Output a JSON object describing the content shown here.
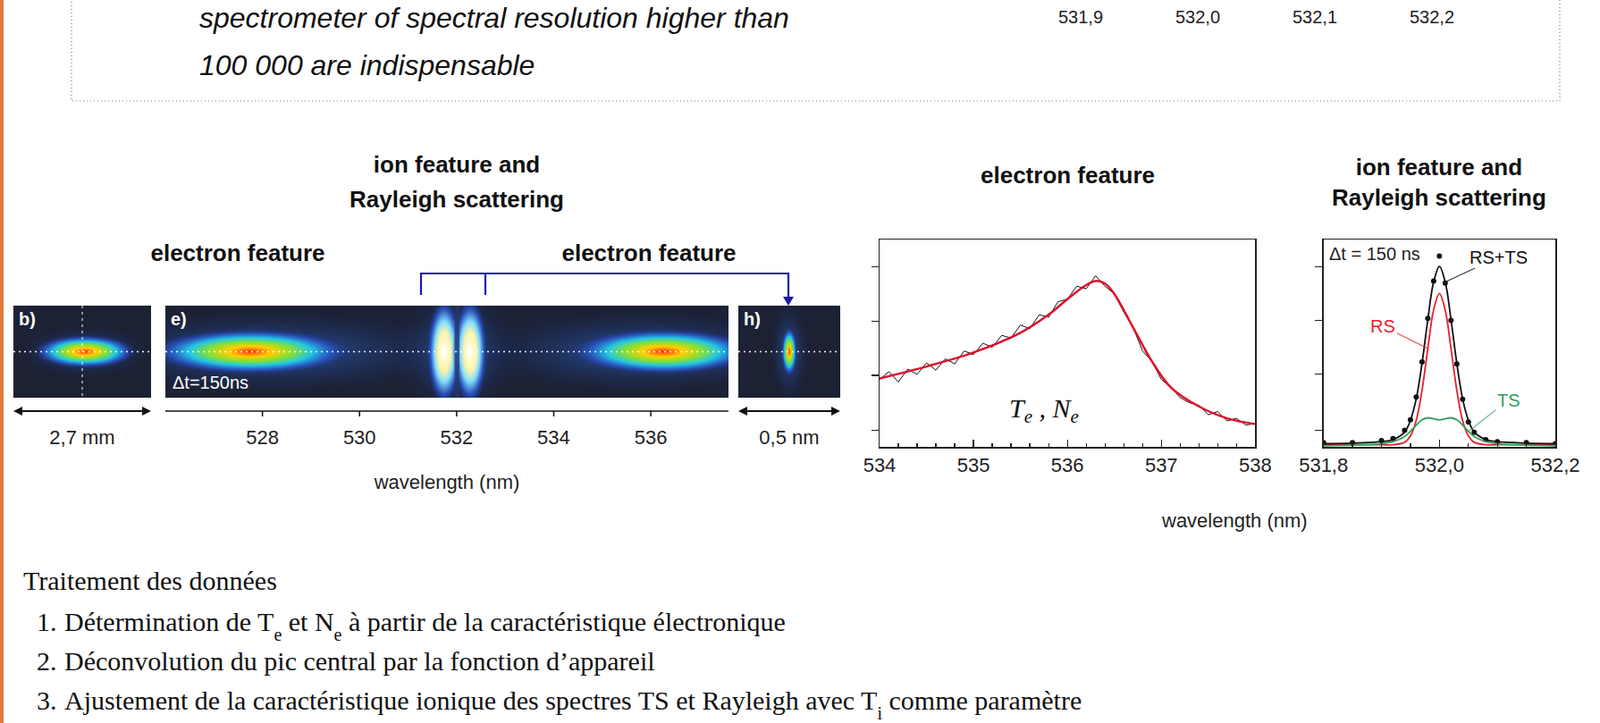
{
  "header_box": {
    "lines": [
      "spectrometer of spectral resolution higher than",
      "100 000 are indispensable"
    ],
    "axis_labels": [
      "531,9",
      "532,0",
      "532,1",
      "532,2"
    ]
  },
  "spectral_images": {
    "group_labels": {
      "left": "electron feature",
      "center": "ion feature and Rayleigh scattering",
      "right": "electron feature"
    },
    "panels": [
      {
        "label": "b)",
        "scale_label": "2,7 mm"
      },
      {
        "label": "e)",
        "note": "Δt=150ns",
        "xlim": [
          526,
          537.6
        ],
        "xticks": [
          528,
          530,
          532,
          534,
          536
        ],
        "xlabel": "wavelength (nm)"
      },
      {
        "label": "h)",
        "scale_label": "0,5 nm"
      }
    ]
  },
  "chart_data": [
    {
      "type": "line",
      "title": "electron feature",
      "xlim": [
        534,
        538
      ],
      "xticks": [
        534,
        535,
        536,
        537,
        538
      ],
      "ylim": [
        0,
        4
      ],
      "yticks": [
        0.32,
        1.38,
        2.42,
        3.47
      ],
      "tick_labels": "x",
      "grid": false,
      "annotation": [
        "T",
        {
          "sub": "e"
        },
        " , N",
        {
          "sub": "e"
        }
      ],
      "series": [
        {
          "color": "#111111",
          "line_style": "solid",
          "x": [
            534.0,
            534.1,
            534.2,
            534.3,
            534.4,
            534.5,
            534.6,
            534.7,
            534.8,
            534.9,
            535.0,
            535.1,
            535.2,
            535.3,
            535.4,
            535.5,
            535.6,
            535.7,
            535.8,
            535.9,
            536.0,
            536.1,
            536.2,
            536.3,
            536.4,
            536.5,
            536.6,
            536.7,
            536.8,
            536.9,
            537.0,
            537.1,
            537.2,
            537.3,
            537.4,
            537.5,
            537.6,
            537.7,
            537.8,
            537.9,
            538.0
          ],
          "values": [
            1.3,
            1.45,
            1.25,
            1.5,
            1.4,
            1.62,
            1.48,
            1.7,
            1.6,
            1.85,
            1.78,
            2.0,
            1.92,
            2.15,
            2.1,
            2.35,
            2.28,
            2.55,
            2.5,
            2.8,
            2.85,
            3.1,
            3.05,
            3.3,
            3.1,
            2.95,
            2.6,
            2.3,
            1.85,
            1.65,
            1.3,
            1.15,
            0.95,
            0.85,
            0.8,
            0.62,
            0.68,
            0.5,
            0.55,
            0.42,
            0.45
          ]
        },
        {
          "color": "#e0102a",
          "line_style": "solid",
          "x": [
            534,
            534.5,
            535,
            535.5,
            535.8,
            536,
            536.2,
            536.3,
            536.4,
            536.5,
            536.7,
            536.9,
            537.1,
            537.4,
            537.7,
            538
          ],
          "values": [
            1.32,
            1.55,
            1.82,
            2.2,
            2.55,
            2.85,
            3.12,
            3.2,
            3.15,
            2.95,
            2.3,
            1.65,
            1.15,
            0.78,
            0.55,
            0.44
          ]
        }
      ]
    },
    {
      "type": "line",
      "title": "ion feature and Rayleigh scattering",
      "xlim": [
        531.8,
        532.2
      ],
      "xticks": [
        {
          "value": 531.8,
          "label": "531,8"
        },
        {
          "value": 532.0,
          "label": "532,0"
        },
        {
          "value": 532.2,
          "label": "532,2"
        }
      ],
      "ylim": [
        0,
        1
      ],
      "yticks": [
        0.08,
        0.35,
        0.61,
        0.87
      ],
      "tick_labels": "x",
      "grid": false,
      "annotation": "Δt = 150 ns",
      "x": [
        531.8,
        531.85,
        531.9,
        531.92,
        531.94,
        531.95,
        531.96,
        531.97,
        531.98,
        531.99,
        532.0,
        532.01,
        532.02,
        532.03,
        532.04,
        532.05,
        532.06,
        532.08,
        532.1,
        532.15,
        532.2
      ],
      "series": [
        {
          "type": "scatter",
          "marker": "circle",
          "color": "#111111",
          "values": [
            0.02,
            0.02,
            0.03,
            0.04,
            0.08,
            0.13,
            0.24,
            0.41,
            0.62,
            0.8,
            0.92,
            0.79,
            0.61,
            0.4,
            0.23,
            0.12,
            0.07,
            0.035,
            0.025,
            0.02,
            0.015
          ]
        },
        {
          "name": "RS",
          "color": "#e8202a",
          "line_style": "solid",
          "values": [
            0.01,
            0.01,
            0.01,
            0.01,
            0.022,
            0.053,
            0.127,
            0.273,
            0.474,
            0.66,
            0.74,
            0.66,
            0.474,
            0.273,
            0.127,
            0.053,
            0.022,
            0.01,
            0.01,
            0.01,
            0.01
          ]
        },
        {
          "name": "TS",
          "color": "#2e9e5b",
          "line_style": "solid",
          "values": [
            0.005,
            0.008,
            0.015,
            0.025,
            0.05,
            0.075,
            0.105,
            0.13,
            0.14,
            0.135,
            0.13,
            0.135,
            0.14,
            0.13,
            0.105,
            0.075,
            0.05,
            0.025,
            0.015,
            0.008,
            0.005
          ]
        },
        {
          "name": "RS+TS",
          "color": "#111111",
          "line_style": "solid",
          "values": [
            0.015,
            0.018,
            0.025,
            0.035,
            0.072,
            0.128,
            0.232,
            0.403,
            0.614,
            0.795,
            0.87,
            0.795,
            0.614,
            0.403,
            0.232,
            0.128,
            0.072,
            0.035,
            0.025,
            0.018,
            0.015
          ]
        }
      ]
    }
  ],
  "shared_xlabel": "wavelength (nm)",
  "data_processing": {
    "title": "Traitement des données",
    "steps": [
      {
        "number": "1.",
        "text": [
          "Détermination de T",
          {
            "sub": "e"
          },
          " et N",
          {
            "sub": "e"
          },
          " à partir de la caractéristique électronique"
        ]
      },
      {
        "number": "2.",
        "text": [
          "Déconvolution du pic central par la fonction d’appareil"
        ]
      },
      {
        "number": "3.",
        "text": [
          "Ajustement de la caractéristique ionique des spectres TS et Rayleigh avec T",
          {
            "sub": "i"
          },
          " comme paramètre"
        ]
      }
    ]
  }
}
